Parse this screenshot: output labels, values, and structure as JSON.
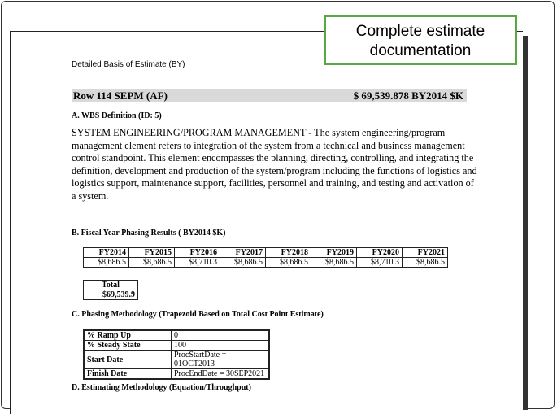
{
  "callout": "Complete estimate documentation",
  "doc": {
    "heading": "Detailed Basis of Estimate (BY)",
    "row_label": "Row 114 SEPM (AF)",
    "row_value": "$ 69,539.878 BY2014 $K",
    "section_a": "A. WBS Definition (ID: 5)",
    "description": "SYSTEM ENGINEERING/PROGRAM MANAGEMENT - The system engineering/program management element refers to integration of the system from a technical and business management control standpoint.  This element encompasses the planning, directing, controlling, and integrating the definition, development and production of the system/program including the functions of logistics and logistics support, maintenance support, facilities, personnel and training, and testing and activation of a system.",
    "section_b": "B. Fiscal Year Phasing Results ( BY2014 $K)",
    "fy_headers": [
      "FY2014",
      "FY2015",
      "FY2016",
      "FY2017",
      "FY2018",
      "FY2019",
      "FY2020",
      "FY2021"
    ],
    "fy_values": [
      "$8,686.5",
      "$8,686.5",
      "$8,710.3",
      "$8,686.5",
      "$8,686.5",
      "$8,686.5",
      "$8,710.3",
      "$8,686.5"
    ],
    "total_label": "Total",
    "total_value": "$69,539.9",
    "section_c": "C. Phasing Methodology (Trapezoid Based on Total Cost Point Estimate)",
    "phasing": [
      [
        "% Ramp Up",
        "0"
      ],
      [
        "% Steady State",
        "100"
      ],
      [
        "Start Date",
        "ProcStartDate = 01OCT2013"
      ],
      [
        "Finish Date",
        "ProcEndDate = 30SEP2021"
      ]
    ],
    "section_d": "D. Estimating Methodology (Equation/Throughput)"
  }
}
